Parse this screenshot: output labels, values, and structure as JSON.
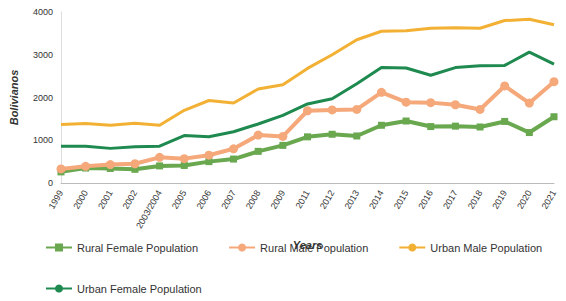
{
  "chart_data": {
    "type": "line",
    "x_label": "Years",
    "y_label": "Bolivianos",
    "categories": [
      "1999",
      "2000",
      "2001",
      "2002",
      "2003/2004",
      "2005",
      "2006",
      "2007",
      "2008",
      "2009",
      "2011",
      "2012",
      "2013",
      "2014",
      "2015",
      "2016",
      "2017",
      "2018",
      "2019",
      "2020",
      "2021"
    ],
    "series": [
      {
        "name": "Rural Female Population",
        "color": "#69a84f",
        "marker": "square",
        "values": [
          260,
          350,
          340,
          320,
          400,
          410,
          500,
          560,
          740,
          880,
          1080,
          1140,
          1100,
          1350,
          1450,
          1320,
          1330,
          1310,
          1440,
          1180,
          1550
        ]
      },
      {
        "name": "Rural Male Population",
        "color": "#f5a87a",
        "marker": "circle",
        "values": [
          330,
          390,
          430,
          450,
          600,
          570,
          650,
          800,
          1120,
          1090,
          1690,
          1710,
          1720,
          2120,
          1890,
          1880,
          1830,
          1720,
          2270,
          1870,
          2370
        ]
      },
      {
        "name": "Urban Male Population",
        "color": "#f2b134",
        "marker": "none",
        "values": [
          1370,
          1390,
          1350,
          1400,
          1350,
          1700,
          1930,
          1870,
          2200,
          2300,
          2680,
          3000,
          3350,
          3550,
          3560,
          3620,
          3630,
          3620,
          3800,
          3830,
          3700
        ]
      },
      {
        "name": "Urban Female Population",
        "color": "#1e8a50",
        "marker": "none",
        "values": [
          860,
          860,
          810,
          850,
          860,
          1110,
          1080,
          1200,
          1380,
          1580,
          1850,
          1970,
          2320,
          2700,
          2690,
          2520,
          2700,
          2740,
          2750,
          3060,
          2780
        ]
      }
    ],
    "ylim": [
      0,
      4000
    ],
    "yticks": [
      0,
      1000,
      2000,
      3000,
      4000
    ],
    "grid": false,
    "legend": "bottom"
  }
}
